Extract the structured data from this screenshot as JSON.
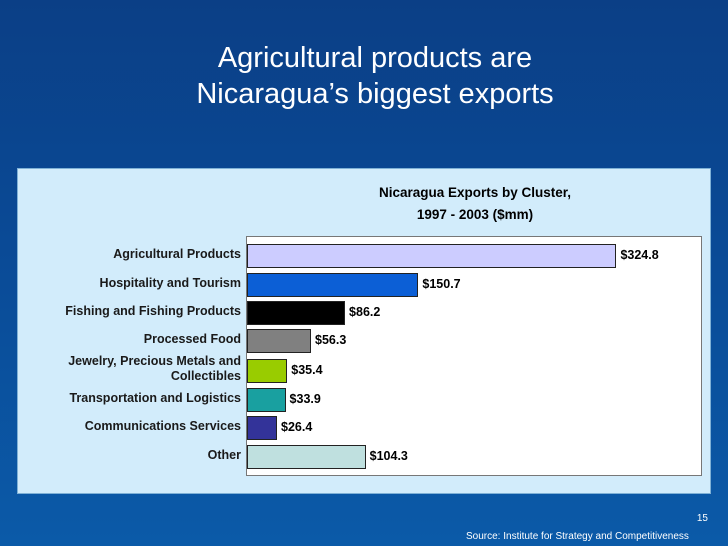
{
  "slide": {
    "title_line1": "Agricultural products are",
    "title_line2": "Nicaragua’s biggest exports",
    "page_number": "15",
    "source": "Source: Institute for Strategy and Competitiveness"
  },
  "chart_data": {
    "type": "bar",
    "orientation": "horizontal",
    "title": "Nicaragua Exports by Cluster,",
    "subtitle": "1997 - 2003 ($mm)",
    "categories": [
      "Agricultural Products",
      "Hospitality and Tourism",
      "Fishing and Fishing Products",
      "Processed Food",
      "Jewelry, Precious Metals and Collectibles",
      "Transportation and Logistics",
      "Communications Services",
      "Other"
    ],
    "values": [
      324.8,
      150.7,
      86.2,
      56.3,
      35.4,
      33.9,
      26.4,
      104.3
    ],
    "value_labels": [
      "$324.8",
      "$150.7",
      "$86.2",
      "$56.3",
      "$35.4",
      "$33.9",
      "$26.4",
      "$104.3"
    ],
    "colors": [
      "#ccccff",
      "#0c5fd6",
      "#000000",
      "#808080",
      "#99cc00",
      "#19a0a0",
      "#333399",
      "#bfe0df"
    ],
    "xlim": [
      0,
      400
    ],
    "grid": false,
    "legend": "none"
  }
}
